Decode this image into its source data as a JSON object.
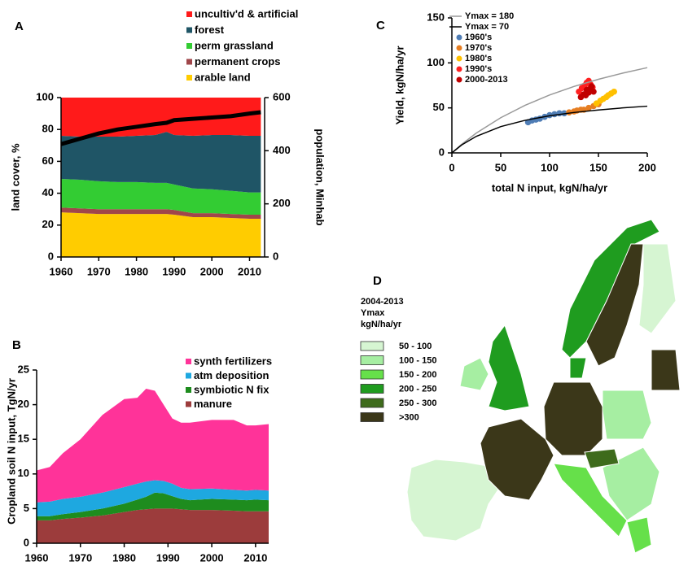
{
  "chart_data": [
    {
      "type": "area",
      "label": "A",
      "ylabel": "land cover, %",
      "y2label": "population, Minhab",
      "x": [
        1960,
        1965,
        1970,
        1975,
        1980,
        1985,
        1988,
        1990,
        1995,
        2000,
        2005,
        2010,
        2013
      ],
      "xlim": [
        1960,
        2014
      ],
      "xticks": [
        1960,
        1970,
        1980,
        1990,
        2000,
        2010
      ],
      "ylim": [
        0,
        100
      ],
      "yticks": [
        0,
        20,
        40,
        60,
        80,
        100
      ],
      "y2lim": [
        0,
        600
      ],
      "y2ticks": [
        0,
        200,
        400,
        600
      ],
      "series": [
        {
          "name": "arable land",
          "color": "#ffcc00",
          "values": [
            28,
            27.5,
            27,
            27,
            27,
            27,
            27,
            26.5,
            25,
            25,
            24.5,
            24,
            24
          ]
        },
        {
          "name": "permanent crops",
          "color": "#a0464a",
          "values": [
            3,
            3,
            3,
            3,
            3,
            3,
            3,
            3,
            2.5,
            2.5,
            2.5,
            2.5,
            2.5
          ]
        },
        {
          "name": "perm grassland",
          "color": "#33cc33",
          "values": [
            18,
            18,
            17.5,
            17,
            17,
            16.5,
            16.5,
            16,
            15.5,
            15,
            14.5,
            14,
            14
          ]
        },
        {
          "name": "forest",
          "color": "#1f5566",
          "values": [
            27,
            27,
            28,
            28.5,
            29,
            30,
            32,
            31,
            33,
            34,
            35,
            35.5,
            35.5
          ]
        },
        {
          "name": "uncultiv'd & artificial",
          "color": "#ff1a1a",
          "values": [
            24,
            24.5,
            24.5,
            24.5,
            24,
            23.5,
            21.5,
            23.5,
            24,
            23.5,
            23.5,
            24,
            24
          ]
        },
        {
          "color": "#000000",
          "axis": "y2",
          "values": [
            425,
            445,
            465,
            480,
            490,
            500,
            505,
            515,
            520,
            525,
            530,
            540,
            545
          ]
        }
      ]
    },
    {
      "type": "area",
      "label": "B",
      "ylabel": "Cropland soil N input, TgN/yr",
      "x": [
        1960,
        1963,
        1966,
        1970,
        1975,
        1980,
        1983,
        1985,
        1987,
        1989,
        1991,
        1993,
        1995,
        2000,
        2005,
        2008,
        2010,
        2013
      ],
      "xlim": [
        1960,
        2013
      ],
      "xticks": [
        1960,
        1970,
        1980,
        1990,
        2000,
        2010
      ],
      "ylim": [
        0,
        25
      ],
      "yticks": [
        0,
        5,
        10,
        15,
        20,
        25
      ],
      "series": [
        {
          "name": "manure",
          "color": "#9c3c3c",
          "values": [
            3.3,
            3.3,
            3.5,
            3.7,
            4,
            4.5,
            4.8,
            4.9,
            5,
            5,
            5,
            4.9,
            4.8,
            4.8,
            4.7,
            4.6,
            4.6,
            4.6
          ]
        },
        {
          "name": "symbiotic N fix",
          "color": "#1e8c1e",
          "values": [
            0.6,
            0.6,
            0.7,
            0.8,
            1,
            1.2,
            1.5,
            1.8,
            2.3,
            2.2,
            1.8,
            1.5,
            1.4,
            1.6,
            1.6,
            1.6,
            1.7,
            1.6
          ]
        },
        {
          "name": "atm deposition",
          "color": "#1ea8e0",
          "values": [
            2,
            2.1,
            2.2,
            2.2,
            2.3,
            2.4,
            2.3,
            2.2,
            1.8,
            1.8,
            1.8,
            1.6,
            1.6,
            1.5,
            1.4,
            1.4,
            1.4,
            1.4
          ]
        },
        {
          "name": "synth fertilizers",
          "color": "#ff3399",
          "values": [
            4.6,
            5,
            6.6,
            8.3,
            11.2,
            12.7,
            12.4,
            13.4,
            12.9,
            11,
            9.4,
            9.4,
            9.6,
            9.9,
            10.1,
            9.4,
            9.3,
            9.6
          ]
        }
      ]
    },
    {
      "type": "scatter",
      "label": "C",
      "xlabel": "total N input, kgN/ha/yr",
      "ylabel": "Yield, kgN/ha/yr",
      "xlim": [
        0,
        200
      ],
      "xticks": [
        0,
        50,
        100,
        150,
        200
      ],
      "ylim": [
        0,
        150
      ],
      "yticks": [
        0,
        50,
        100,
        150
      ],
      "series": [
        {
          "name": "Ymax = 180",
          "color": "#999999",
          "style": "line",
          "x": [
            0,
            10,
            25,
            50,
            75,
            100,
            125,
            150,
            175,
            200
          ],
          "values": [
            0,
            9.5,
            22,
            39.1,
            52.9,
            64.3,
            73.8,
            81.8,
            88.7,
            94.7
          ]
        },
        {
          "name": "Ymax = 70",
          "color": "#000000",
          "style": "line",
          "x": [
            0,
            10,
            25,
            50,
            75,
            100,
            125,
            150,
            175,
            200
          ],
          "values": [
            0,
            8.8,
            18.4,
            29.2,
            36.2,
            41.2,
            44.9,
            47.7,
            50,
            51.9
          ]
        },
        {
          "name": "1960's",
          "color": "#4f7db5",
          "x": [
            78,
            82,
            86,
            90,
            95,
            100,
            105,
            110,
            115
          ],
          "values": [
            34,
            36,
            37,
            38,
            40,
            42,
            43,
            44,
            44
          ]
        },
        {
          "name": "1970's",
          "color": "#e67e22",
          "x": [
            120,
            125,
            128,
            132,
            135,
            140,
            145,
            150
          ],
          "values": [
            45,
            46,
            47,
            48,
            48,
            50,
            52,
            54
          ]
        },
        {
          "name": "1980's",
          "color": "#ffc000",
          "x": [
            148,
            152,
            155,
            158,
            160,
            163,
            166
          ],
          "values": [
            55,
            58,
            60,
            62,
            64,
            66,
            68
          ]
        },
        {
          "name": "1990's",
          "color": "#ff2020",
          "x": [
            130,
            133,
            136,
            138,
            140,
            142,
            144
          ],
          "values": [
            68,
            72,
            75,
            78,
            80,
            76,
            73
          ]
        },
        {
          "name": "2000-2013",
          "color": "#c00000",
          "x": [
            132,
            135,
            138,
            140,
            142,
            145,
            137,
            143
          ],
          "values": [
            62,
            65,
            70,
            67,
            72,
            68,
            64,
            74
          ]
        }
      ]
    }
  ],
  "map": {
    "label": "D",
    "legend_title": [
      "2004-2013",
      "Ymax",
      "kgN/ha/yr"
    ],
    "classes": [
      {
        "label": "50 - 100",
        "color": "#d6f5d2"
      },
      {
        "label": "100 - 150",
        "color": "#a6eea2"
      },
      {
        "label": "150 - 200",
        "color": "#66e04a"
      },
      {
        "label": "200 - 250",
        "color": "#1f9c1f"
      },
      {
        "label": "250 - 300",
        "color": "#3e6b1c"
      },
      {
        "label": ">300",
        "color": "#3b3719"
      }
    ]
  }
}
